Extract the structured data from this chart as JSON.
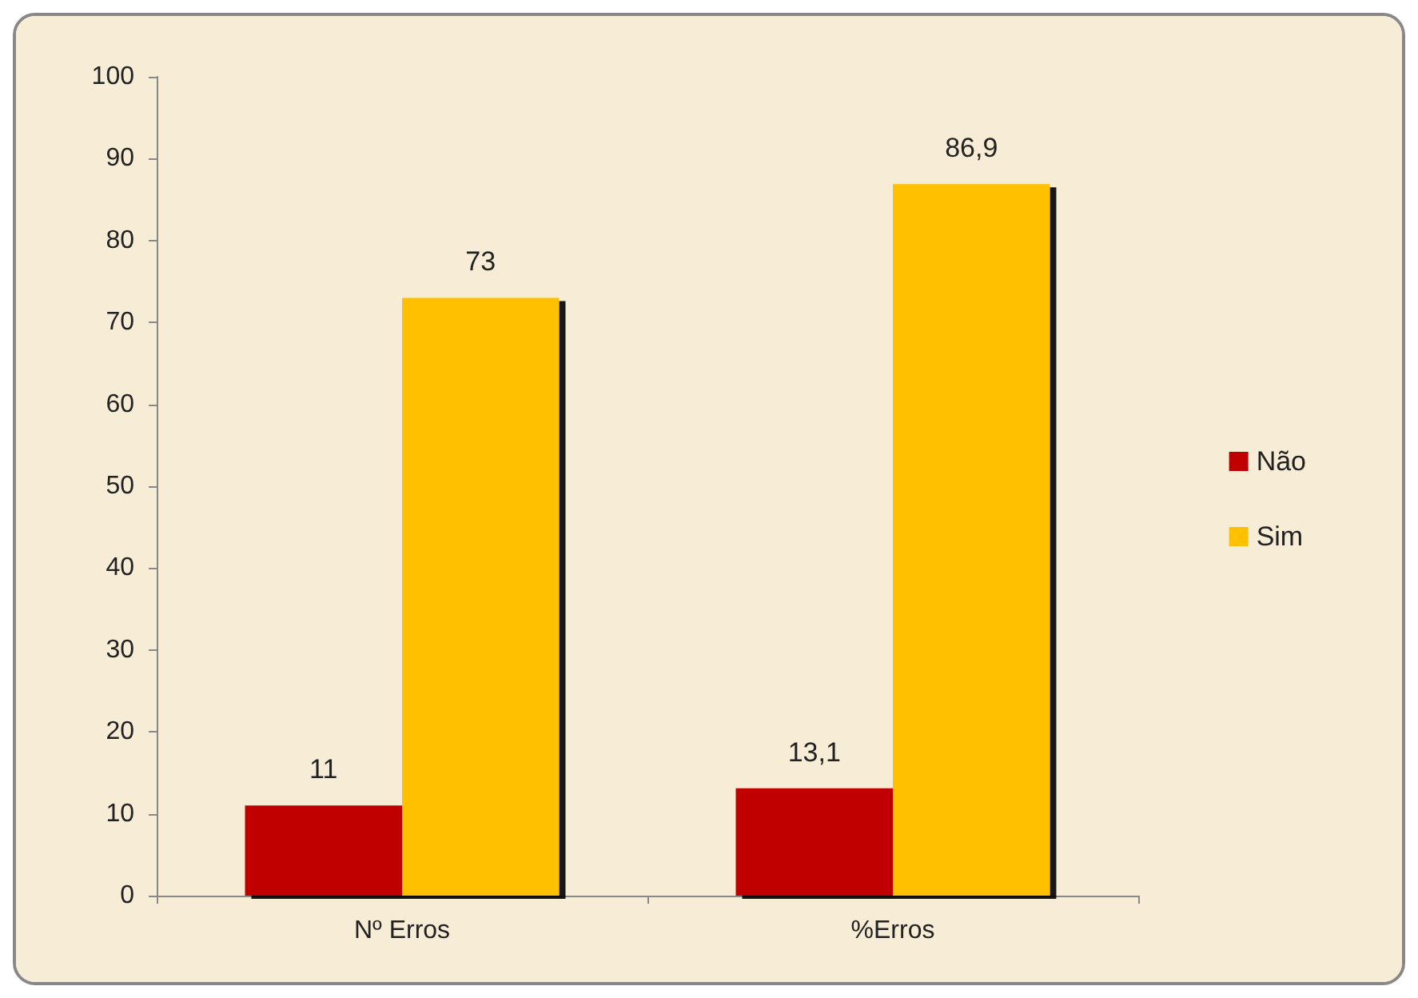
{
  "chart_data": {
    "type": "bar",
    "categories": [
      "Nº Erros",
      "%Erros"
    ],
    "series": [
      {
        "name": "Não",
        "color": "#c00000",
        "values": [
          11,
          13.1
        ],
        "value_labels": [
          "11",
          "13,1"
        ]
      },
      {
        "name": "Sim",
        "color": "#ffc000",
        "values": [
          73,
          86.9
        ],
        "value_labels": [
          "73",
          "86,9"
        ]
      }
    ],
    "ylim": [
      0,
      100
    ],
    "yticks": [
      0,
      10,
      20,
      30,
      40,
      50,
      60,
      70,
      80,
      90,
      100
    ],
    "legend": "right",
    "grid": false
  }
}
